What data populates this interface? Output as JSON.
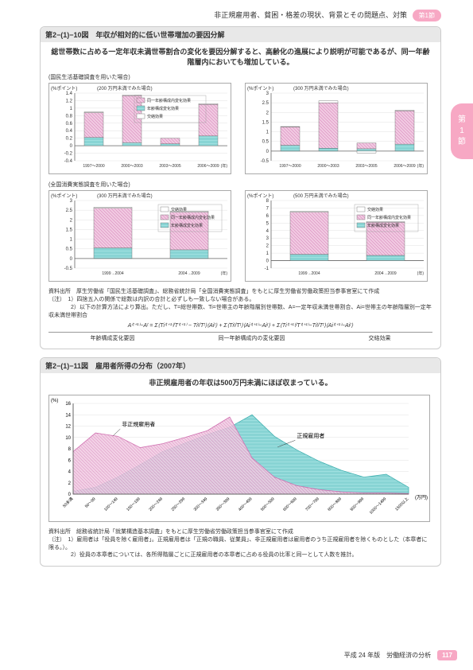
{
  "header": {
    "breadcrumb": "非正規雇用者、貧困・格差の現状、背景とその問題点、対策",
    "tag": "第1節"
  },
  "sideTab": {
    "line1": "第",
    "line2": "1",
    "line3": "節"
  },
  "panel1": {
    "title": "第2−(1)−10図　年収が相対的に低い世帯増加の要因分解",
    "subtitle": "総世帯数に占める一定年収未満世帯割合の変化を要因分解すると、高齢化の進展により説明が可能であるが、同一年齢階層内においても増加している。",
    "survey1": "(国民生活基礎調査を用いた場合)",
    "survey2": "(全国消費実態調査を用いた場合)",
    "chart1": {
      "ylabel": "(%ポイント)",
      "sublabel": "(200 万円未満でみた場合)",
      "ylim": [
        -0.4,
        1.4
      ],
      "ytick_step": 0.2,
      "categories": [
        "1997～2000",
        "2000～2003",
        "2003～2005",
        "2006～2009"
      ],
      "xUnit": "(年)",
      "series": {
        "inner": {
          "label": "同一年齢構成内変化効果",
          "color_fill": "#f0c8e0",
          "color_pattern": "#d88cc0",
          "values": [
            0.66,
            1.25,
            0.15,
            0.84
          ]
        },
        "age": {
          "label": "年齢構成変化効果",
          "color_fill": "#a0e0e0",
          "color_pattern": "#50c0c0",
          "values": [
            0.22,
            0.08,
            0.05,
            0.26
          ]
        },
        "cross": {
          "label": "交絡効果",
          "color_fill": "#ffffff",
          "values": [
            0.02,
            0.02,
            0.0,
            0.02
          ]
        }
      }
    },
    "chart2": {
      "ylabel": "(%ポイント)",
      "sublabel": "(300 万円未満でみた場合)",
      "ylim": [
        -0.5,
        3.0
      ],
      "ytick_step": 0.5,
      "categories": [
        "1997～2000",
        "2000～2003",
        "2003～2005",
        "2006～2009"
      ],
      "xUnit": "(年)",
      "values_inner": [
        0.95,
        2.35,
        0.3,
        1.72
      ],
      "values_age": [
        0.3,
        0.15,
        0.12,
        0.36
      ],
      "values_cross": [
        0.02,
        0.1,
        -0.1,
        0.03
      ]
    },
    "chart3": {
      "ylabel": "(%ポイント)",
      "sublabel": "(300 万円未満でみた場合)",
      "ylim": [
        -0.5,
        3.0
      ],
      "ytick_step": 0.5,
      "categories": [
        "1999→2004",
        "2004→2009"
      ],
      "xUnit": "(年)",
      "series": {
        "cross": {
          "label": "交絡効果",
          "values": [
            0.05,
            0.05
          ]
        },
        "inner": {
          "label": "同一年齢構成内変化効果",
          "values": [
            2.05,
            1.95
          ]
        },
        "age": {
          "label": "年齢構成変化効果",
          "values": [
            0.55,
            0.45
          ]
        }
      }
    },
    "chart4": {
      "ylabel": "(%ポイント)",
      "sublabel": "(500 万円未満でみた場合)",
      "ylim": [
        -1,
        8
      ],
      "ytick_step": 1,
      "categories": [
        "1999→2004",
        "2004→2009"
      ],
      "xUnit": "(年)",
      "values_cross": [
        0.1,
        0.1
      ],
      "values_inner": [
        5.6,
        4.4
      ],
      "values_age": [
        0.85,
        0.7
      ]
    },
    "notes": "資料出所　厚生労働省「国民生活基礎調査」、総務省統計局「全国消費実態調査」をもとに厚生労働省労働政策担当参事官室にて作成\n（注）　1）四捨五入の関係で総数は内訳の合計と必ずしも一致しない場合がある。\n　　　　2）以下の計算方法により算出。ただし、T=総世帯数、Ti=世帯主の年齢階層別世帯数、A=一定年収未満世帯割合、Ai=世帯主の年齢階層別一定年収未満世帯割合",
    "formula": "A⁽ᵗ⁺¹⁾−Aᵗ = Σ⟨Ti⁽ᵗ⁺¹⁾/T⁽ᵗ⁺¹⁾ − Tiᵗ/Tᵗ⟩⟨Aiᵗ⟩ + Σ⟨Tiᵗ/Tᵗ⟩⟨Ai⁽ᵗ⁺¹⁾−Aiᵗ⟩ + Σ⟨Ti⁽ᵗ⁺¹⁾/T⁽ᵗ⁺¹⁾−Tiᵗ/Tᵗ⟩⟨Ai⁽ᵗ⁺¹⁾−Aiᵗ⟩",
    "formulaLabels": {
      "a": "年齢構成変化要因",
      "b": "同一年齢構成内の変化要因",
      "c": "交絡効果"
    }
  },
  "panel2": {
    "title": "第2−(1)−11図　雇用者所得の分布（2007年）",
    "subtitle": "非正規雇用者の年収は500万円未満にほぼ収まっている。",
    "chart": {
      "ylabel": "(%)",
      "ylim": [
        0,
        16
      ],
      "ytick_step": 2,
      "xUnit": "(万円)",
      "categories": [
        "50未満",
        "50～99",
        "100～149",
        "150～199",
        "200～249",
        "250～299",
        "300～349",
        "350～399",
        "400～499",
        "500～599",
        "600～699",
        "700～799",
        "800～899",
        "900～999",
        "1000～1499",
        "1500以上"
      ],
      "series": {
        "nonreg": {
          "label": "非正規雇用者",
          "color_fill": "#f0c8e0",
          "color_pattern": "#d88cc0",
          "values": [
            7.5,
            10.8,
            10.2,
            8.2,
            8.9,
            10.0,
            11.2,
            13.6,
            6.4,
            3.0,
            1.5,
            0.8,
            0.4,
            0.2,
            0.2,
            0.1
          ]
        },
        "reg": {
          "label": "正規雇用者",
          "color_fill": "#a0e0e0",
          "color_pattern": "#50c0c0",
          "values": [
            0.5,
            1.2,
            3.0,
            5.2,
            7.5,
            9.0,
            10.5,
            11.8,
            14.0,
            10.2,
            7.8,
            5.8,
            4.2,
            3.0,
            3.5,
            1.2
          ]
        }
      }
    },
    "notes": "資料出所　総務省統計局「就業構造基本調査」をもとに厚生労働省労働政策担当参事官室にて作成\n（注）　1）雇用者は「役員を除く雇用者」。正規雇用者は「正規の職員、従業員」、非正規雇用者は雇用者のうち正規雇用者を除くものとした（本章者に限る。）。\n　　　　2）役員の本章者については、各所得階層ごとに正規雇用者の本章者に占める役員の比率と同一として人数を推計。"
  },
  "footer": {
    "text": "平成 24 年版　労働経済の分析",
    "page": "117"
  },
  "colors": {
    "pink_fill": "#f0c8e0",
    "pink_line": "#d070b0",
    "teal_fill": "#a0e0e0",
    "teal_line": "#40b0b0",
    "white_fill": "#ffffff",
    "grid": "#cccccc",
    "axis": "#666666"
  }
}
